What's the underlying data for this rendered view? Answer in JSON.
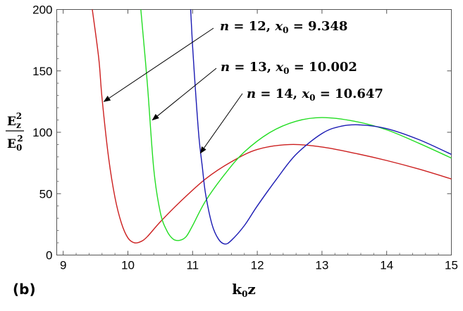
{
  "panel_label": "(b)",
  "chart_data": {
    "type": "line",
    "xlabel": "k0z",
    "ylabel": "Ez^2 / E0^2",
    "xlim": [
      8.9,
      15.0
    ],
    "ylim": [
      0,
      200
    ],
    "xticks": [
      "9",
      "10",
      "11",
      "12",
      "13",
      "14",
      "15"
    ],
    "yticks": [
      "0",
      "50",
      "100",
      "150",
      "200"
    ],
    "grid": false,
    "legend": "none",
    "series": [
      {
        "name": "n = 12, x0 = 9.348",
        "color": "#cc1f1f",
        "x": [
          9.45,
          9.55,
          9.6,
          9.7,
          9.8,
          9.9,
          10.0,
          10.1,
          10.2,
          10.3,
          10.5,
          10.8,
          11.2,
          11.6,
          12.0,
          12.5,
          13.0,
          13.5,
          14.0,
          14.5,
          15.0
        ],
        "y": [
          200,
          160,
          128,
          80,
          47,
          26,
          14,
          10,
          11,
          15,
          27,
          43,
          62,
          76,
          86,
          90,
          88,
          83,
          77,
          70,
          62
        ]
      },
      {
        "name": "n = 13, x0 = 10.002",
        "color": "#22dd22",
        "x": [
          10.2,
          10.3,
          10.4,
          10.5,
          10.6,
          10.7,
          10.8,
          10.9,
          11.0,
          11.2,
          11.5,
          11.8,
          12.2,
          12.6,
          13.0,
          13.5,
          14.0,
          14.5,
          15.0
        ],
        "y": [
          200,
          140,
          70,
          35,
          20,
          13,
          12,
          15,
          24,
          44,
          66,
          84,
          100,
          109,
          112,
          109,
          102,
          91,
          79
        ]
      },
      {
        "name": "n = 14, x0 = 10.647",
        "color": "#1a1ab3",
        "x": [
          10.97,
          11.0,
          11.05,
          11.1,
          11.15,
          11.2,
          11.3,
          11.4,
          11.5,
          11.6,
          11.8,
          12.0,
          12.3,
          12.6,
          13.0,
          13.3,
          13.6,
          14.0,
          14.5,
          15.0
        ],
        "y": [
          200,
          170,
          130,
          95,
          72,
          50,
          25,
          13,
          9,
          12,
          24,
          40,
          62,
          82,
          99,
          105,
          106,
          103,
          94,
          82
        ]
      }
    ],
    "annotations": [
      {
        "n": "12",
        "x0": "9.348",
        "tip_x": 9.63,
        "tip_y": 125
      },
      {
        "n": "13",
        "x0": "10.002",
        "tip_x": 10.38,
        "tip_y": 110
      },
      {
        "n": "14",
        "x0": "10.647",
        "tip_x": 11.12,
        "tip_y": 83
      }
    ]
  }
}
